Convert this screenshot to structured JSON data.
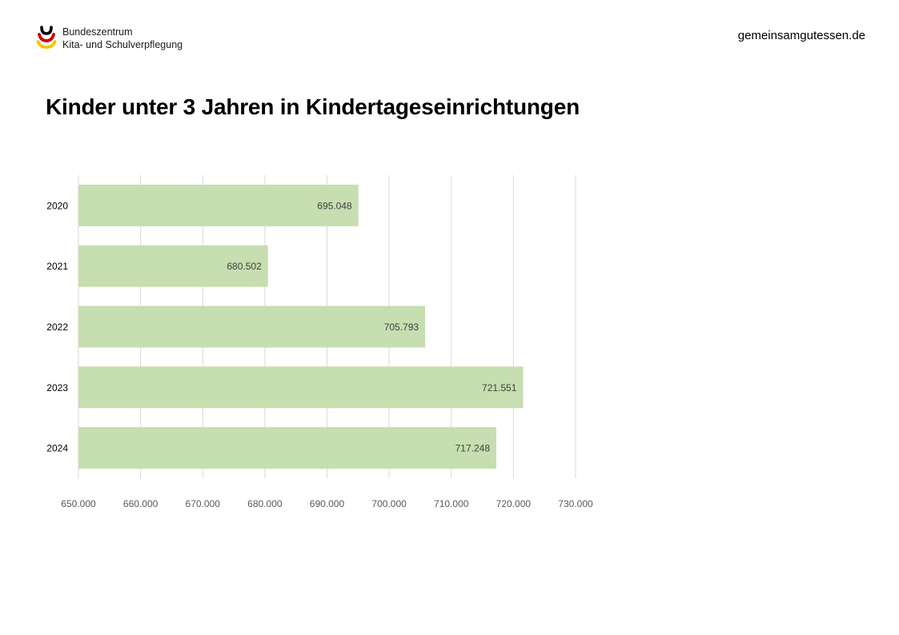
{
  "header": {
    "logo": {
      "line1": "Bundeszentrum",
      "line2": "Kita- und Schulverpflegung",
      "colors": [
        "#000000",
        "#d00000",
        "#f5c400"
      ]
    },
    "website": "gemeinsamgutessen.de"
  },
  "chart_data": {
    "type": "bar",
    "orientation": "horizontal",
    "title": "Kinder unter 3 Jahren in Kindertageseinrichtungen",
    "categories": [
      "2020",
      "2021",
      "2022",
      "2023",
      "2024"
    ],
    "values": [
      695048,
      680502,
      705793,
      721551,
      717248
    ],
    "value_labels": [
      "695.048",
      "680.502",
      "705.793",
      "721.551",
      "717.248"
    ],
    "xlim": [
      650000,
      730000
    ],
    "xticks": [
      650000,
      660000,
      670000,
      680000,
      690000,
      700000,
      710000,
      720000,
      730000
    ],
    "xtick_labels": [
      "650.000",
      "660.000",
      "670.000",
      "680.000",
      "690.000",
      "700.000",
      "710.000",
      "720.000",
      "730.000"
    ],
    "grid": true,
    "bar_color": "#c6deb0",
    "grid_color": "#d9d9d9"
  }
}
